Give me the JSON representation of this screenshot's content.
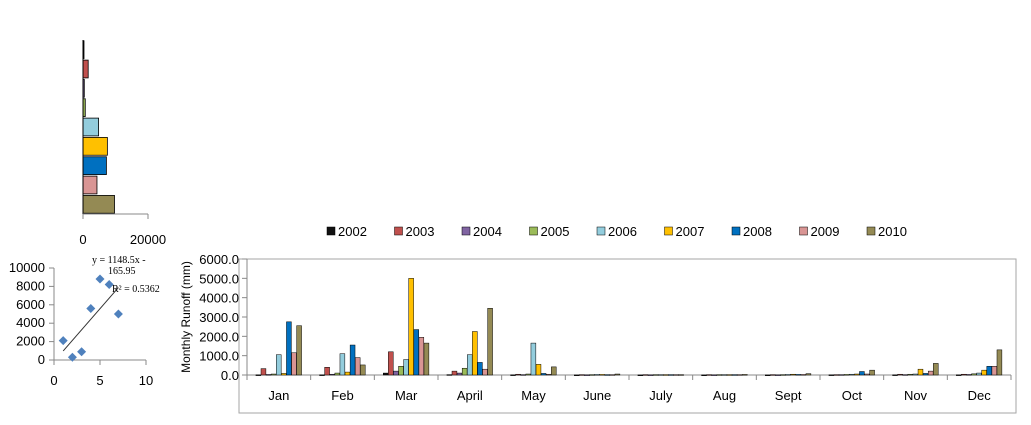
{
  "chart_data": [
    {
      "type": "bar",
      "orientation": "horizontal",
      "title": "",
      "xlabel": "",
      "ylabel": "",
      "categories": [
        "2002",
        "2003",
        "2004",
        "2005",
        "2006",
        "2007",
        "2008",
        "2009",
        "2010"
      ],
      "values": [
        200,
        1600,
        400,
        700,
        4800,
        7500,
        7200,
        4300,
        9700
      ],
      "xlim": [
        0,
        20000
      ],
      "x_tick_labels": [
        "0",
        "20000"
      ],
      "colors": [
        "#111111",
        "#c0504d",
        "#8064a2",
        "#9bbb59",
        "#93cddd",
        "#ffc000",
        "#0070c0",
        "#d99594",
        "#948a54"
      ]
    },
    {
      "type": "scatter",
      "title": "",
      "xlabel": "",
      "ylabel": "",
      "x": [
        1,
        2,
        3,
        4,
        5,
        6,
        7
      ],
      "y": [
        2100,
        300,
        900,
        5600,
        8800,
        8200,
        5000
      ],
      "xlim": [
        0,
        10
      ],
      "ylim": [
        0,
        10000
      ],
      "x_tick_labels": [
        "0",
        "5",
        "10"
      ],
      "y_tick_labels": [
        "0",
        "2000",
        "4000",
        "6000",
        "8000",
        "10000"
      ],
      "trendline": {
        "slope": 1148.5,
        "intercept": -165.95,
        "x_range": [
          1,
          7
        ]
      },
      "equation_lines": [
        "y = 1148.5x -",
        "165.95",
        "R² = 0.5362"
      ],
      "marker_color": "#4f81bd"
    },
    {
      "type": "bar",
      "title": "",
      "xlabel": "",
      "ylabel": "Monthly  Runoff (mm)",
      "ylim": [
        0,
        6000
      ],
      "y_tick_labels": [
        "0.0",
        "1000.0",
        "2000.0",
        "3000.0",
        "4000.0",
        "5000.0",
        "6000.0"
      ],
      "legend_position": "top",
      "categories": [
        "Jan",
        "Feb",
        "Mar",
        "April",
        "May",
        "June",
        "July",
        "Aug",
        "Sept",
        "Oct",
        "Nov",
        "Dec"
      ],
      "series": [
        {
          "name": "2002",
          "color": "#111111",
          "values": [
            10,
            10,
            100,
            20,
            10,
            5,
            5,
            5,
            5,
            10,
            10,
            10
          ]
        },
        {
          "name": "2003",
          "color": "#c0504d",
          "values": [
            330,
            400,
            1200,
            200,
            40,
            20,
            20,
            20,
            20,
            20,
            40,
            40
          ]
        },
        {
          "name": "2004",
          "color": "#8064a2",
          "values": [
            30,
            40,
            200,
            100,
            20,
            10,
            10,
            10,
            10,
            20,
            20,
            30
          ]
        },
        {
          "name": "2005",
          "color": "#9bbb59",
          "values": [
            50,
            100,
            450,
            350,
            50,
            20,
            20,
            20,
            20,
            30,
            40,
            60
          ]
        },
        {
          "name": "2006",
          "color": "#93cddd",
          "values": [
            1050,
            1100,
            800,
            1050,
            1650,
            30,
            20,
            20,
            30,
            40,
            50,
            100
          ]
        },
        {
          "name": "2007",
          "color": "#ffc000",
          "values": [
            80,
            150,
            5000,
            2250,
            550,
            30,
            20,
            20,
            40,
            50,
            300,
            250
          ]
        },
        {
          "name": "2008",
          "color": "#0070c0",
          "values": [
            2750,
            1550,
            2350,
            650,
            80,
            20,
            20,
            20,
            30,
            180,
            80,
            450
          ]
        },
        {
          "name": "2009",
          "color": "#d99594",
          "values": [
            1150,
            900,
            1950,
            300,
            40,
            20,
            20,
            20,
            30,
            50,
            200,
            450
          ]
        },
        {
          "name": "2010",
          "color": "#948a54",
          "values": [
            2550,
            520,
            1650,
            3450,
            420,
            50,
            20,
            30,
            70,
            250,
            600,
            1300
          ]
        }
      ]
    }
  ]
}
